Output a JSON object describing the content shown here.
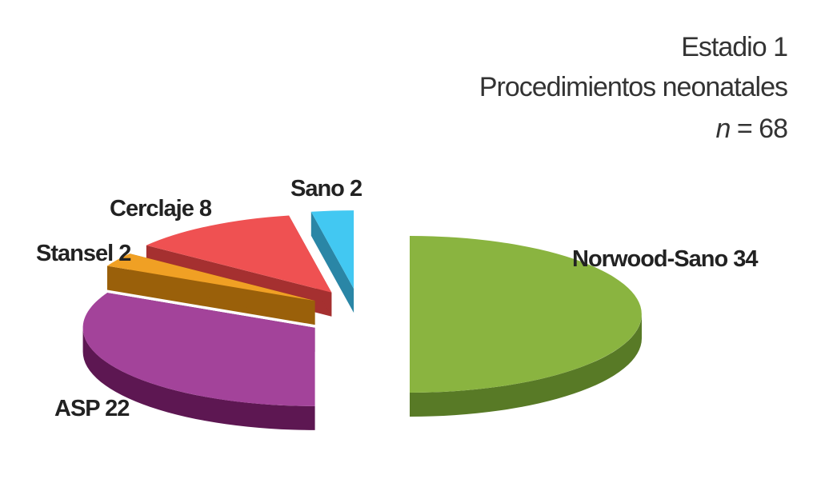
{
  "chart_data": {
    "type": "pie3d",
    "title": "Estadio 1",
    "subtitle": "Procedimientos neonatales",
    "n_label": {
      "symbol": "n",
      "text": "= 68"
    },
    "categories": [
      "Norwood-Sano",
      "ASP",
      "Stansel",
      "Cerclaje",
      "Sano"
    ],
    "values": [
      34,
      22,
      2,
      8,
      2
    ],
    "colors": [
      "#8ab440",
      "#a3439a",
      "#f0a024",
      "#ef5152",
      "#42c8f2"
    ],
    "side_colors": [
      "#587a26",
      "#5d1752",
      "#9a600a",
      "#a53030",
      "#2a86a6"
    ]
  }
}
